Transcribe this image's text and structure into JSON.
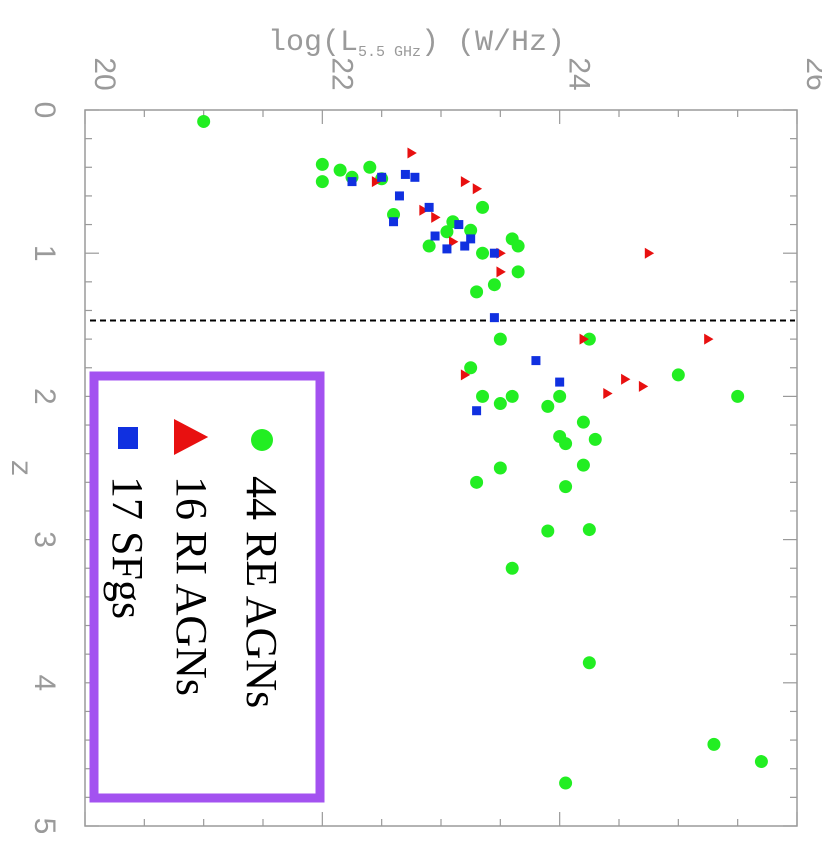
{
  "chart_data": {
    "type": "scatter",
    "orientation": "rotated 90 degrees clockwise",
    "xlabel": "z",
    "ylabel_main": "log(L",
    "ylabel_sub": "5.5 GHz",
    "ylabel_end": ") (W/Hz)",
    "xlim": [
      0,
      5
    ],
    "ylim": [
      20,
      26
    ],
    "x_ticks": [
      "0",
      "1",
      "2",
      "3",
      "4",
      "5"
    ],
    "y_ticks": [
      "20",
      "22",
      "24",
      "26"
    ],
    "dashed_line_z": 1.47,
    "legend_position": "bottom-left",
    "legend_border_color": "#a352f0",
    "series": [
      {
        "name": "44 RE AGNs",
        "marker": "circle",
        "color": "#22ee22",
        "points": [
          [
            0.08,
            21.0
          ],
          [
            0.38,
            22.0
          ],
          [
            0.5,
            22.0
          ],
          [
            0.42,
            22.15
          ],
          [
            0.47,
            22.25
          ],
          [
            0.4,
            22.4
          ],
          [
            0.48,
            22.5
          ],
          [
            0.95,
            22.9
          ],
          [
            0.78,
            23.1
          ],
          [
            0.85,
            23.05
          ],
          [
            0.84,
            23.25
          ],
          [
            0.68,
            23.35
          ],
          [
            0.9,
            23.6
          ],
          [
            0.95,
            23.65
          ],
          [
            1.13,
            23.65
          ],
          [
            1.22,
            23.45
          ],
          [
            1.27,
            23.3
          ],
          [
            1.8,
            23.25
          ],
          [
            2.0,
            23.35
          ],
          [
            1.6,
            23.5
          ],
          [
            1.6,
            24.25
          ],
          [
            2.0,
            23.6
          ],
          [
            2.05,
            23.5
          ],
          [
            2.07,
            23.9
          ],
          [
            2.0,
            24.0
          ],
          [
            2.18,
            24.2
          ],
          [
            2.28,
            24.0
          ],
          [
            2.3,
            24.3
          ],
          [
            2.33,
            24.05
          ],
          [
            2.48,
            24.2
          ],
          [
            2.5,
            23.5
          ],
          [
            2.6,
            23.3
          ],
          [
            2.63,
            24.05
          ],
          [
            2.94,
            23.9
          ],
          [
            2.93,
            24.25
          ],
          [
            3.2,
            23.6
          ],
          [
            3.86,
            24.25
          ],
          [
            1.85,
            25.0
          ],
          [
            2.0,
            25.5
          ],
          [
            4.43,
            25.3
          ],
          [
            4.55,
            25.7
          ],
          [
            4.7,
            24.05
          ],
          [
            1.0,
            23.35
          ],
          [
            0.73,
            22.6
          ]
        ]
      },
      {
        "name": "16 RI AGNs",
        "marker": "triangle",
        "color": "#e81010",
        "points": [
          [
            0.3,
            22.75
          ],
          [
            0.5,
            22.45
          ],
          [
            0.5,
            23.2
          ],
          [
            0.55,
            23.3
          ],
          [
            0.7,
            22.85
          ],
          [
            0.75,
            22.95
          ],
          [
            0.92,
            23.1
          ],
          [
            1.0,
            23.5
          ],
          [
            1.13,
            23.5
          ],
          [
            1.0,
            24.75
          ],
          [
            1.6,
            24.2
          ],
          [
            1.6,
            25.25
          ],
          [
            1.85,
            23.2
          ],
          [
            1.88,
            24.55
          ],
          [
            1.93,
            24.7
          ],
          [
            1.98,
            24.4
          ]
        ]
      },
      {
        "name": "17 SFgs",
        "marker": "square",
        "color": "#1030e0",
        "points": [
          [
            0.5,
            22.25
          ],
          [
            0.47,
            22.5
          ],
          [
            0.45,
            22.7
          ],
          [
            0.47,
            22.78
          ],
          [
            0.6,
            22.65
          ],
          [
            0.78,
            22.6
          ],
          [
            0.68,
            22.9
          ],
          [
            0.88,
            22.95
          ],
          [
            0.97,
            23.05
          ],
          [
            0.8,
            23.15
          ],
          [
            0.9,
            23.25
          ],
          [
            1.0,
            23.45
          ],
          [
            1.45,
            23.45
          ],
          [
            2.1,
            23.3
          ],
          [
            1.75,
            23.8
          ],
          [
            1.9,
            24.0
          ],
          [
            0.95,
            23.2
          ]
        ]
      }
    ]
  }
}
